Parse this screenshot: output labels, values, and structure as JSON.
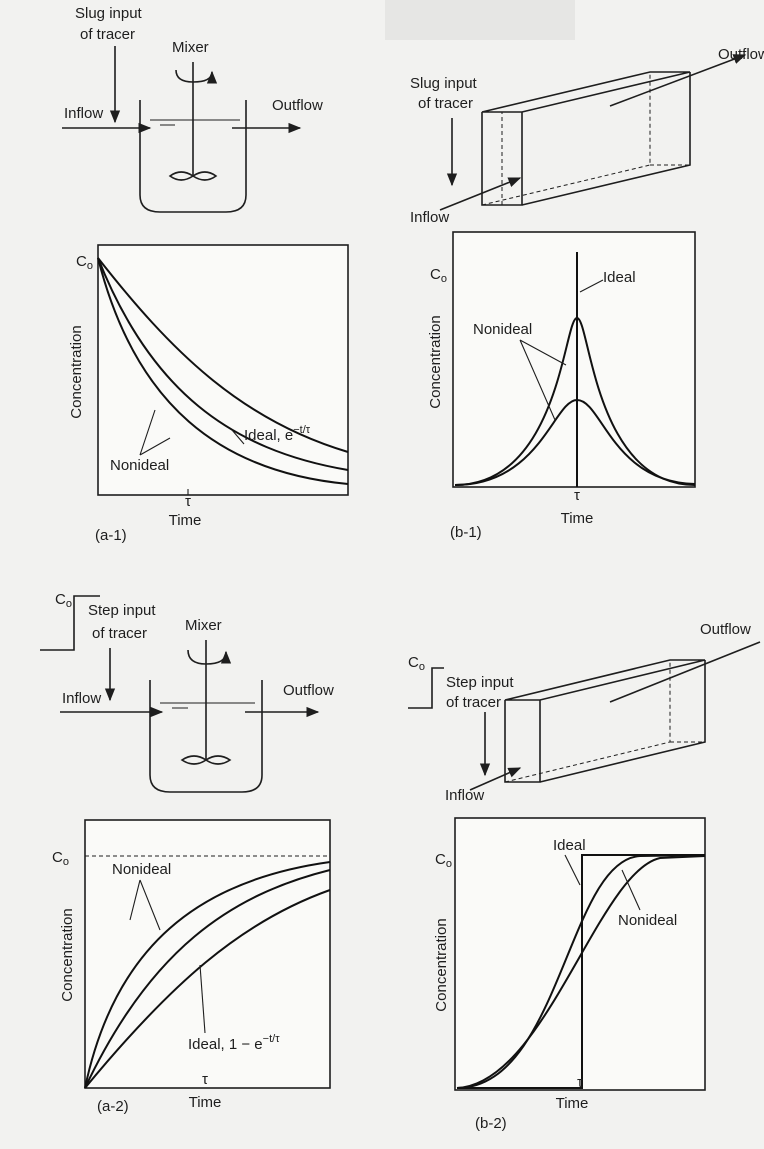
{
  "a1": {
    "input": [
      "Slug input",
      "of tracer"
    ],
    "mixer": "Mixer",
    "inflow": "Inflow",
    "outflow": "Outflow",
    "c0": {
      "text": "C",
      "sub": "o"
    },
    "y_label": "Concentration",
    "x_label": "Time",
    "tau": "τ",
    "ideal": {
      "text": "Ideal, e",
      "sup": "−t/τ"
    },
    "nonideal": "Nonideal",
    "caption": "(a-1)"
  },
  "b1": {
    "input": [
      "Slug input",
      "of tracer"
    ],
    "inflow": "Inflow",
    "outflow": "Outflow",
    "c0": {
      "text": "C",
      "sub": "o"
    },
    "y_label": "Concentration",
    "x_label": "Time",
    "tau": "τ",
    "ideal": "Ideal",
    "nonideal": "Nonideal",
    "caption": "(b-1)"
  },
  "a2": {
    "step_c0": {
      "text": "C",
      "sub": "o"
    },
    "input": [
      "Step input",
      "of tracer"
    ],
    "mixer": "Mixer",
    "inflow": "Inflow",
    "outflow": "Outflow",
    "c0": {
      "text": "C",
      "sub": "o"
    },
    "y_label": "Concentration",
    "x_label": "Time",
    "tau": "τ",
    "ideal": {
      "text": "Ideal, 1 − e",
      "sup": "−t/τ"
    },
    "nonideal": "Nonideal",
    "caption": "(a-2)"
  },
  "b2": {
    "step_c0": {
      "text": "C",
      "sub": "o"
    },
    "input": [
      "Step input",
      "of tracer"
    ],
    "inflow": "Inflow",
    "outflow": "Outflow",
    "c0": {
      "text": "C",
      "sub": "o"
    },
    "y_label": "Concentration",
    "x_label": "Time",
    "tau": "τ",
    "ideal": "Ideal",
    "nonideal": "Nonideal",
    "caption": "(b-2)"
  }
}
